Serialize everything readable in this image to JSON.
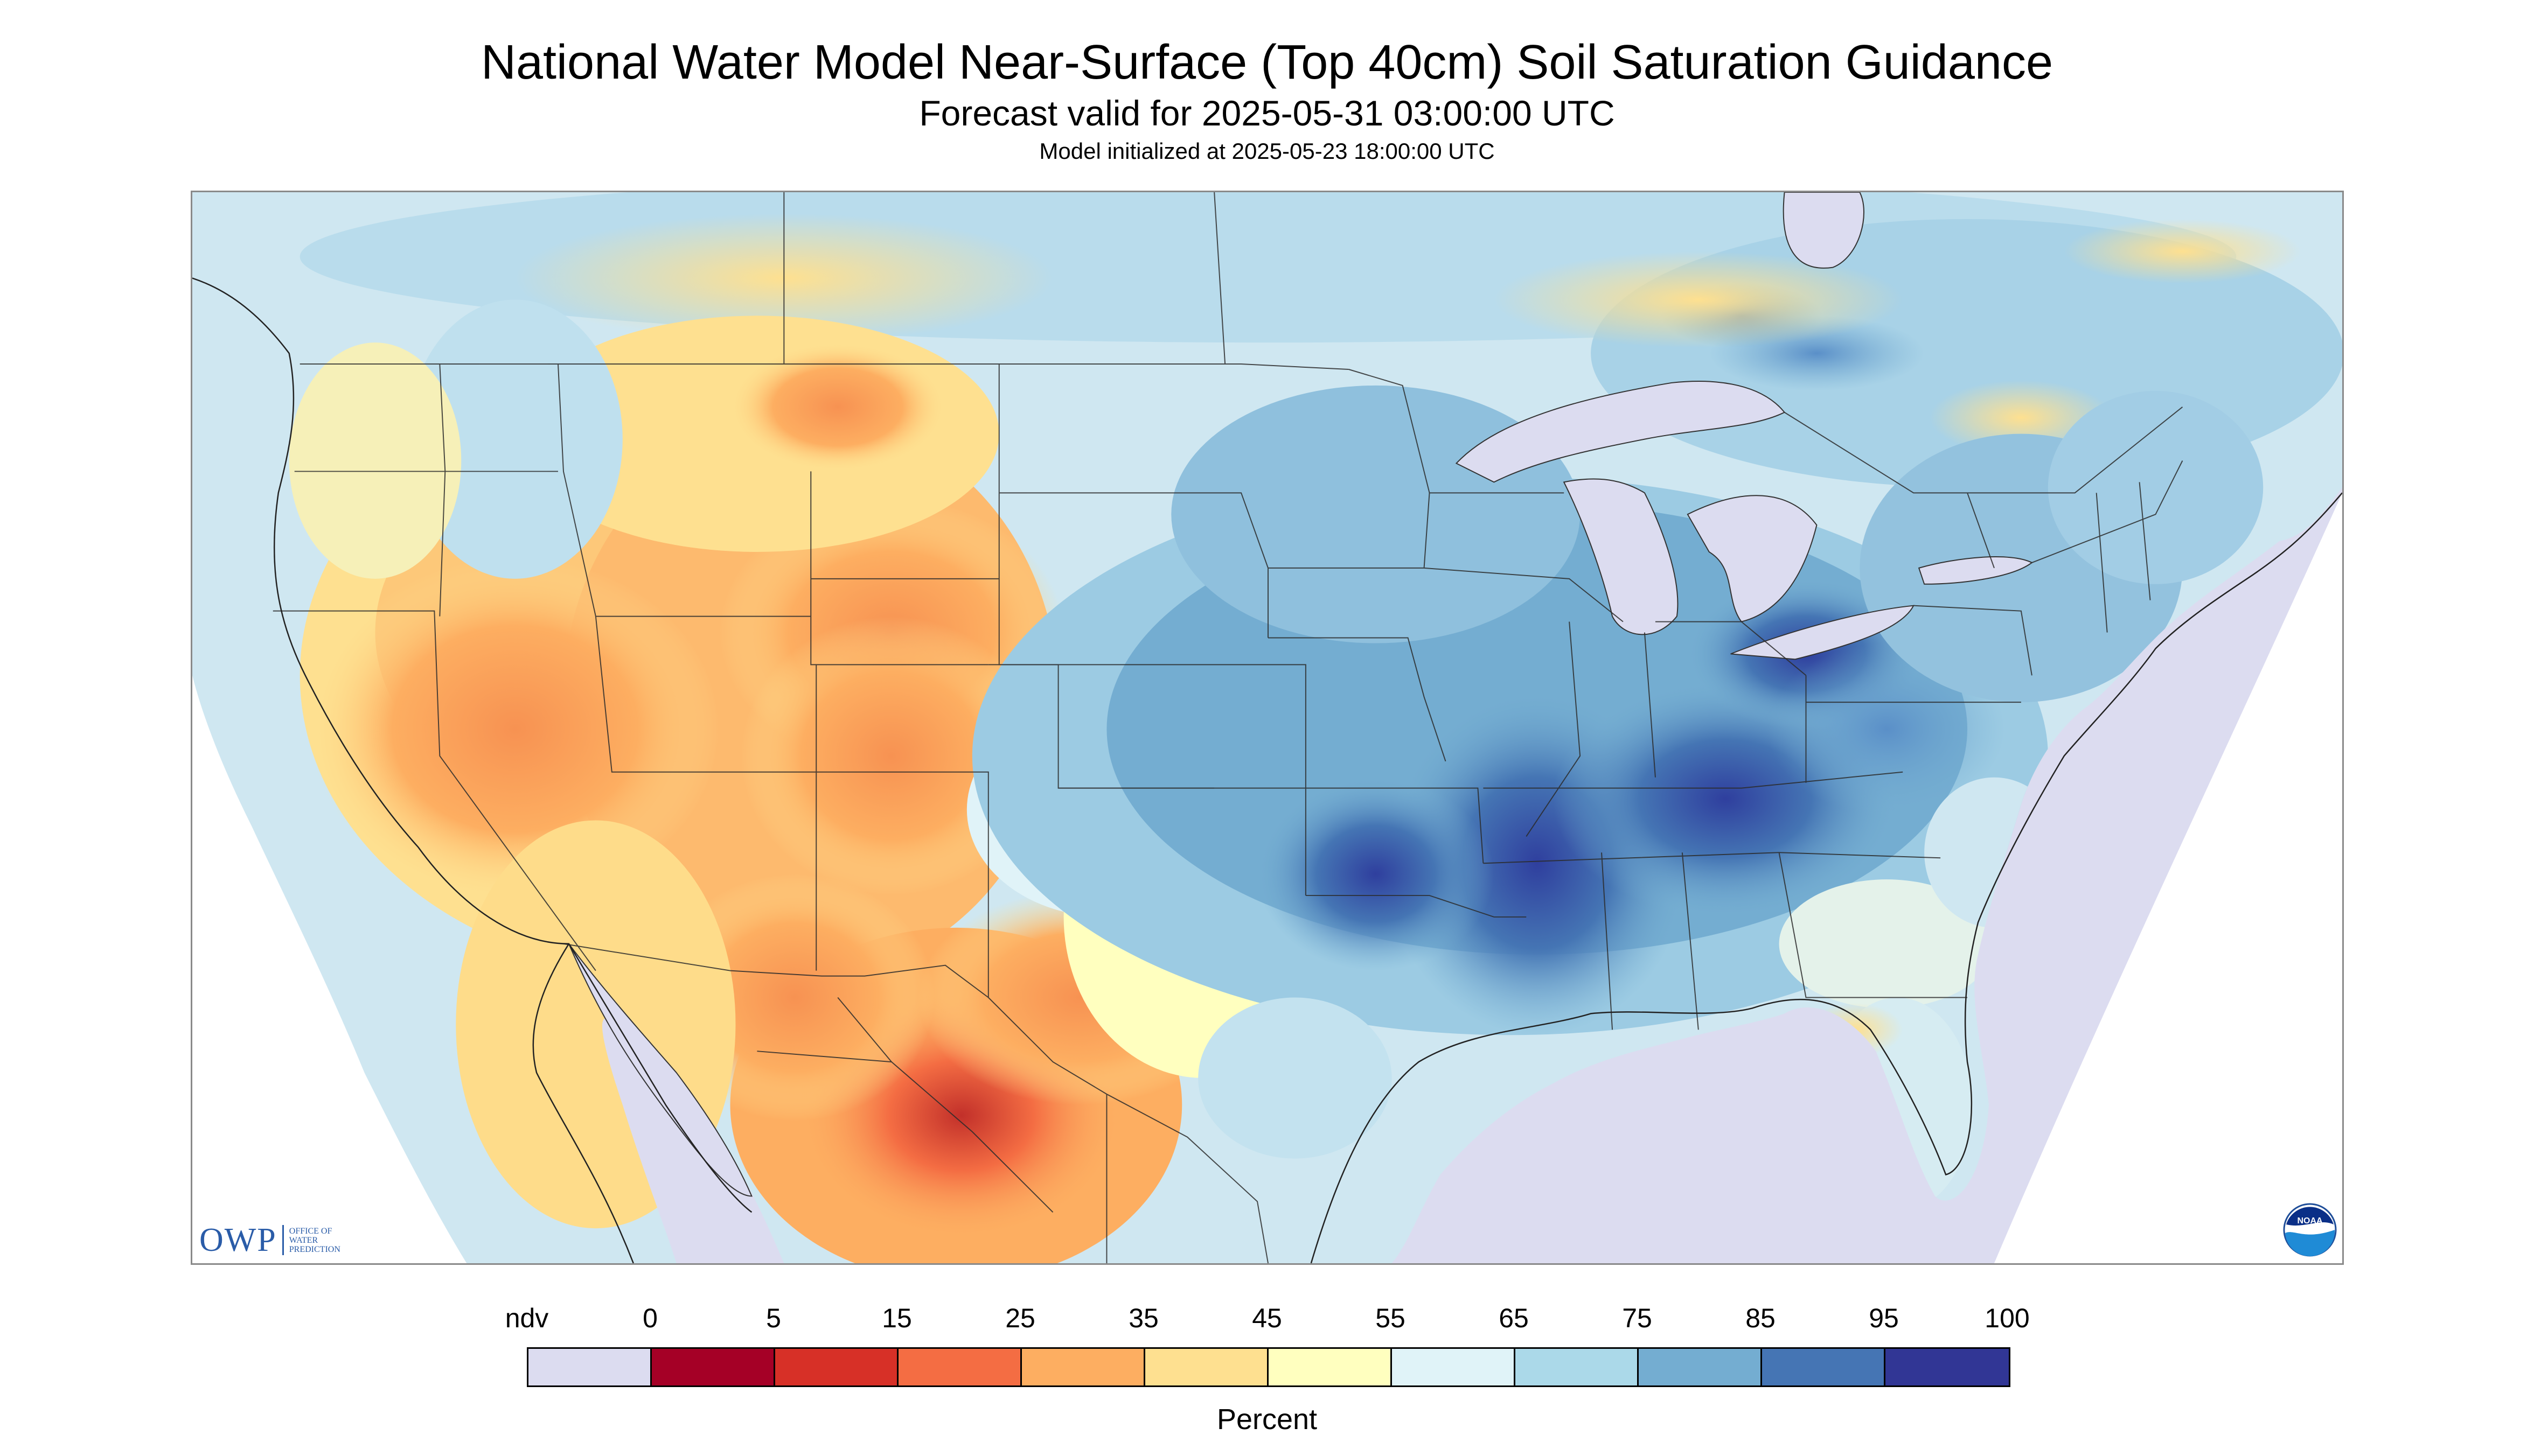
{
  "header": {
    "title": "National Water Model Near-Surface (Top 40cm) Soil Saturation Guidance",
    "subtitle": "Forecast valid for 2025-05-31 03:00:00 UTC",
    "init_text": "Model initialized at 2025-05-23 18:00:00 UTC"
  },
  "map": {
    "region": "Contiguous United States with parts of Canada and Mexico",
    "ndv_color": "#dcdcf0",
    "water_color": "#dcdcf0",
    "pattern": {
      "dry_regions": [
        "Southwest",
        "Northern Mexico",
        "Texas Big Bend",
        "Great Basin",
        "Colorado Plateau"
      ],
      "wet_regions": [
        "Lower Mississippi Valley",
        "Ohio Valley",
        "Tennessee Valley",
        "Ozarks",
        "Central Plains"
      ]
    }
  },
  "logos": {
    "owp_text": "OWP",
    "owp_subtext": [
      "OFFICE OF",
      "WATER",
      "PREDICTION"
    ],
    "noaa_text": "NOAA"
  },
  "legend": {
    "labels": [
      "ndv",
      "0",
      "5",
      "15",
      "25",
      "35",
      "45",
      "55",
      "65",
      "75",
      "85",
      "95",
      "100"
    ],
    "colors": [
      "#dcdcf0",
      "#a50026",
      "#d73027",
      "#f46d43",
      "#fdae61",
      "#fee090",
      "#ffffbf",
      "#e0f3f8",
      "#abd9e9",
      "#74add1",
      "#4575b4",
      "#313695"
    ],
    "unit_label": "Percent"
  }
}
